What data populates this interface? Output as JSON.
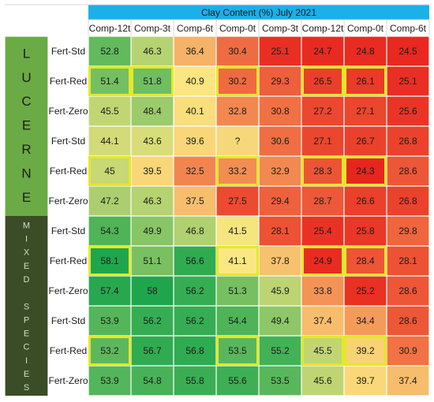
{
  "chart_data": {
    "type": "heatmap",
    "title": "Clay Content (%) July 2021",
    "columns": [
      "Comp-12t",
      "Comp-3t",
      "Comp-6t",
      "Comp-0t",
      "Comp-3t",
      "Comp-12t",
      "Comp-0t",
      "Comp-6t"
    ],
    "groups": [
      {
        "label": "LUCERNE",
        "label_color": "#6aab45",
        "rows": [
          {
            "label": "Fert-Std",
            "values": [
              "52.8",
              "46.3",
              "36.4",
              "30.4",
              "25.1",
              "24.7",
              "24.8",
              "24.5"
            ]
          },
          {
            "label": "Fert-Red",
            "values": [
              "51.4",
              "51.8",
              "40.9",
              "30.2",
              "29.3",
              "26.5",
              "26.1",
              "25.1"
            ]
          },
          {
            "label": "Fert-Zero",
            "values": [
              "45.5",
              "48.4",
              "40.1",
              "32.8",
              "30.8",
              "27.2",
              "27.1",
              "25.6"
            ]
          },
          {
            "label": "Fert-Std",
            "values": [
              "44.1",
              "43.6",
              "39.6",
              "?",
              "30.6",
              "27.1",
              "26.7",
              "26.8"
            ]
          },
          {
            "label": "Fert-Red",
            "values": [
              "45",
              "39.5",
              "32.5",
              "33.2",
              "32.9",
              "28.3",
              "24.3",
              "28.6"
            ]
          },
          {
            "label": "Fert-Zero",
            "values": [
              "47.2",
              "46.3",
              "37.5",
              "27.5",
              "29.4",
              "28.7",
              "26.6",
              "26.8"
            ]
          }
        ]
      },
      {
        "label": "MIXED SPECIES",
        "label_color": "#3a4d26",
        "rows": [
          {
            "label": "Fert-Std",
            "values": [
              "54.3",
              "49.9",
              "46.8",
              "41.5",
              "28.1",
              "25.4",
              "25.8",
              "29.8"
            ]
          },
          {
            "label": "Fert-Red",
            "values": [
              "58.1",
              "51.1",
              "56.6",
              "41.1",
              "37.8",
              "24.9",
              "28.4",
              "28.1"
            ]
          },
          {
            "label": "Fert-Zero",
            "values": [
              "57.4",
              "58",
              "56.2",
              "51.3",
              "45.9",
              "33.8",
              "25.2",
              "28.6"
            ]
          },
          {
            "label": "Fert-Std",
            "values": [
              "53.9",
              "56.2",
              "56.2",
              "54.4",
              "49.4",
              "37.4",
              "34.4",
              "28.6"
            ]
          },
          {
            "label": "Fert-Red",
            "values": [
              "53.2",
              "56.7",
              "56.8",
              "53.5",
              "55.2",
              "45.5",
              "39.2",
              "30.9"
            ]
          },
          {
            "label": "Fert-Zero",
            "values": [
              "53.9",
              "54.8",
              "55.8",
              "55.6",
              "53.5",
              "45.6",
              "39.7",
              "37.4"
            ]
          }
        ]
      }
    ],
    "highlighted_cells": [
      [
        1,
        0
      ],
      [
        1,
        1
      ],
      [
        1,
        3
      ],
      [
        1,
        5
      ],
      [
        1,
        6
      ],
      [
        4,
        0
      ],
      [
        4,
        3
      ],
      [
        4,
        5
      ],
      [
        4,
        6
      ],
      [
        7,
        0
      ],
      [
        7,
        3
      ],
      [
        7,
        5
      ],
      [
        7,
        6
      ],
      [
        10,
        0
      ],
      [
        10,
        3
      ],
      [
        10,
        5
      ],
      [
        10,
        6
      ]
    ],
    "color_scale": {
      "low": 24,
      "high": 58,
      "low_color": "#e8221c",
      "mid_color": "#fbe781",
      "high_color": "#1fa64d"
    },
    "header_color": "#1ab0e8",
    "highlight_color": "#e4e82a"
  }
}
